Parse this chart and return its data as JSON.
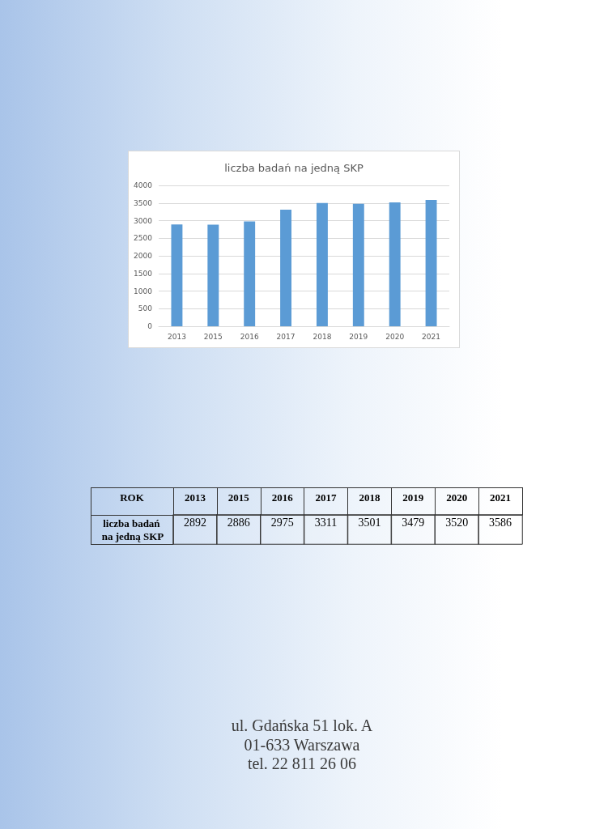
{
  "chart_data": [
    {
      "type": "bar",
      "title": "liczba badań na jedną SKP",
      "categories": [
        "2013",
        "2015",
        "2016",
        "2017",
        "2018",
        "2019",
        "2020",
        "2021"
      ],
      "values": [
        2892,
        2886,
        2975,
        3311,
        3501,
        3479,
        3520,
        3586
      ],
      "color": "#5b9bd5",
      "ylim": [
        0,
        4000
      ],
      "yticks": [
        0,
        500,
        1000,
        1500,
        2000,
        2500,
        3000,
        3500,
        4000
      ],
      "grid": "y",
      "annotations": [
        "ul. Gdańska 51 lok. A",
        "01-633 Warszawa",
        "tel. 22 811 26 06"
      ]
    },
    {
      "type": "heatmap",
      "xlabel": "ROK",
      "categories": [
        "2013",
        "2015",
        "2016",
        "2017",
        "2018",
        "2019",
        "2020",
        "2021"
      ],
      "y_categories": [
        "liczba badań na jedną SKP"
      ],
      "cells": [
        [
          2892,
          2886,
          2975,
          3311,
          3501,
          3479,
          3520,
          3586
        ]
      ],
      "data_labels": true
    }
  ]
}
